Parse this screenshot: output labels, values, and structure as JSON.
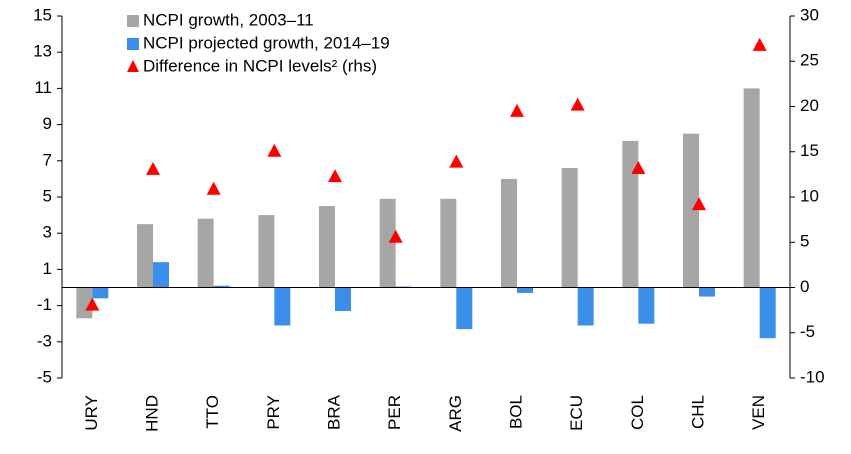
{
  "chart_data": {
    "type": "bar",
    "categories": [
      "URY",
      "HND",
      "TTO",
      "PRY",
      "BRA",
      "PER",
      "ARG",
      "BOL",
      "ECU",
      "COL",
      "CHL",
      "VEN"
    ],
    "series": [
      {
        "name": "NCPI growth, 2003–11",
        "color": "#a6a6a6",
        "values": [
          -1.7,
          3.5,
          3.8,
          4.0,
          4.5,
          4.9,
          4.9,
          6.0,
          6.6,
          8.1,
          8.5,
          11.0
        ]
      },
      {
        "name": "NCPI projected growth, 2014–19",
        "color": "#3b8eea",
        "values": [
          -0.6,
          1.4,
          0.1,
          -2.1,
          -1.3,
          0.05,
          -2.3,
          -0.3,
          -2.1,
          -2.0,
          -0.5,
          -2.8
        ]
      },
      {
        "name": "Difference in NCPI levels² (rhs)",
        "color": "#ff0000",
        "marker": "triangle",
        "axis": "y2",
        "values": [
          -2.0,
          13.0,
          10.8,
          15.0,
          12.2,
          5.5,
          13.8,
          19.4,
          20.1,
          13.1,
          9.1,
          26.7
        ]
      }
    ],
    "ylim": [
      -5,
      15
    ],
    "yticks": [
      -5,
      -3,
      -1,
      1,
      3,
      5,
      7,
      9,
      11,
      13,
      15
    ],
    "y2lim": [
      -10,
      30
    ],
    "y2ticks": [
      -10,
      -5,
      0,
      5,
      10,
      15,
      20,
      25,
      30
    ],
    "legend": "top-left"
  }
}
